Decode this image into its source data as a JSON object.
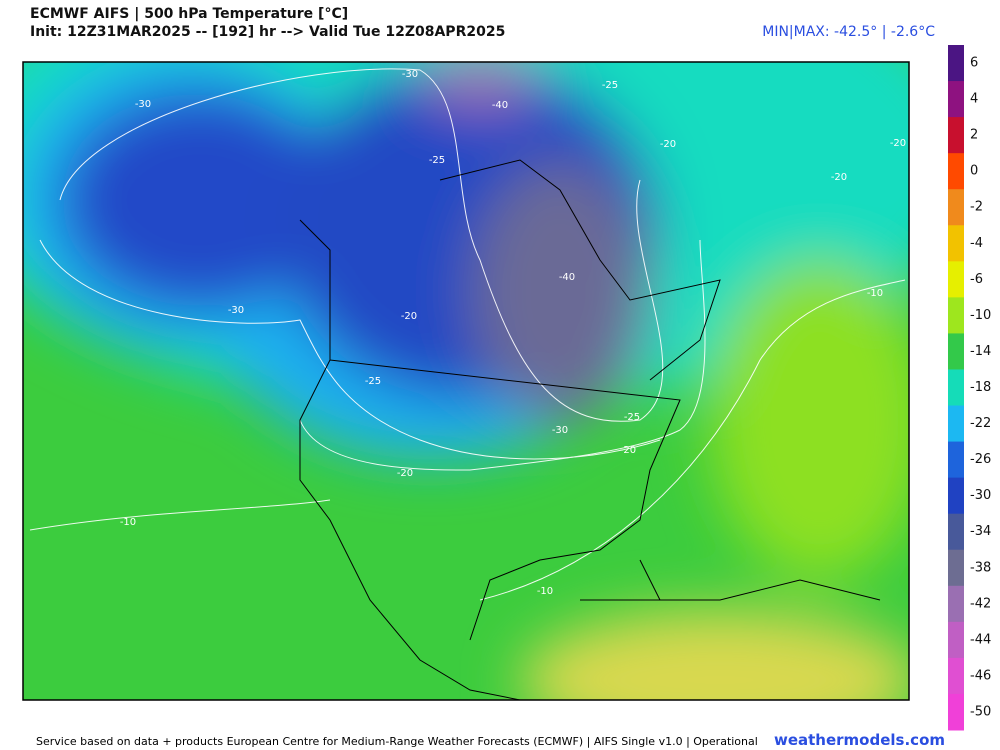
{
  "header": {
    "title": "ECMWF AIFS | 500 hPa Temperature [°C]",
    "subtitle": "Init: 12Z31MAR2025 -- [192] hr --> Valid Tue 12Z08APR2025",
    "minmax": "MIN|MAX: -42.5° | -2.6°C"
  },
  "colorbar": {
    "labels": [
      6,
      4,
      2,
      0,
      -2,
      -4,
      -6,
      -10,
      -14,
      -18,
      -22,
      -26,
      -30,
      -34,
      -38,
      -42,
      -44,
      -46,
      -50
    ],
    "colors": [
      "#4b1583",
      "#8e1280",
      "#c8102e",
      "#ff4a00",
      "#f08a1c",
      "#f2c200",
      "#e6ef00",
      "#9ee61e",
      "#33c94a",
      "#15dcb8",
      "#1cb8f2",
      "#1e64dc",
      "#2042c2",
      "#48599a",
      "#6d6d92",
      "#9a6fb2",
      "#c05fc4",
      "#e04fd2",
      "#f040d8"
    ]
  },
  "map": {
    "contour_labels": [
      "-30",
      "-30",
      "-25",
      "-40",
      "-25",
      "-20",
      "-20",
      "-20",
      "-30",
      "-40",
      "-20",
      "-10",
      "-25",
      "-25",
      "-30",
      "-20",
      "-20",
      "-10",
      "-10"
    ]
  },
  "footer": {
    "credit": "Service based on data + products European Centre for Medium-Range Weather Forecasts (ECMWF) | AIFS Single v1.0 | Operational",
    "site": "weathermodels.com"
  }
}
